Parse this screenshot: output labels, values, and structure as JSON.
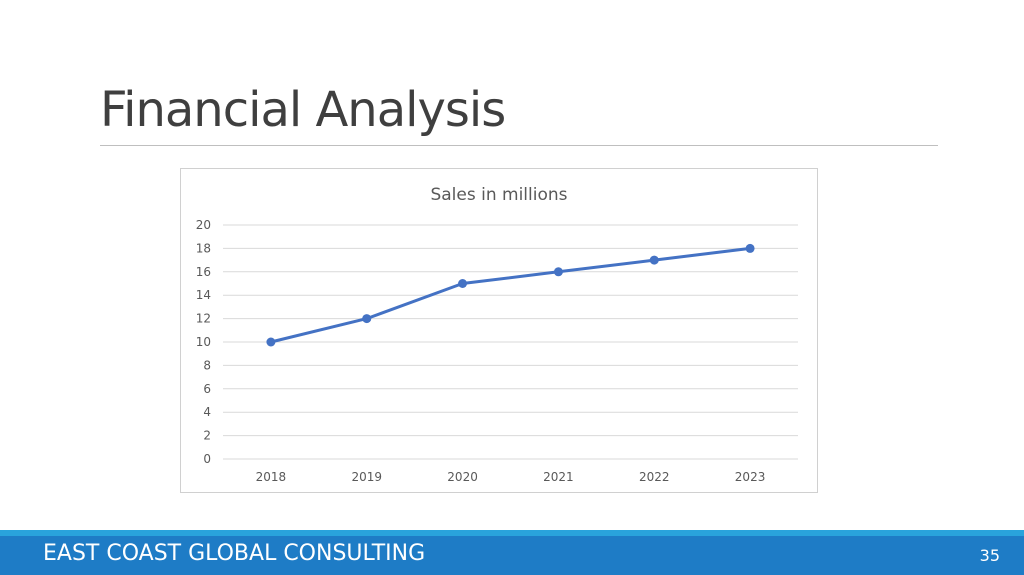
{
  "slide": {
    "title": "Financial Analysis",
    "footer_company": "EAST COAST GLOBAL CONSULTING",
    "page_number": "35"
  },
  "colors": {
    "series_line": "#4472c4",
    "gridline": "#d9d9d9",
    "footer_bar": "#1e7cc6",
    "footer_strip": "#29a3dc"
  },
  "chart_data": {
    "type": "line",
    "title": "Sales in millions",
    "categories": [
      "2018",
      "2019",
      "2020",
      "2021",
      "2022",
      "2023"
    ],
    "series": [
      {
        "values": [
          10,
          12,
          15,
          16,
          17,
          18
        ]
      }
    ],
    "ylim": [
      0,
      20
    ],
    "yticks": [
      0,
      2,
      4,
      6,
      8,
      10,
      12,
      14,
      16,
      18,
      20
    ],
    "grid": true,
    "legend": "none",
    "markers": true
  }
}
